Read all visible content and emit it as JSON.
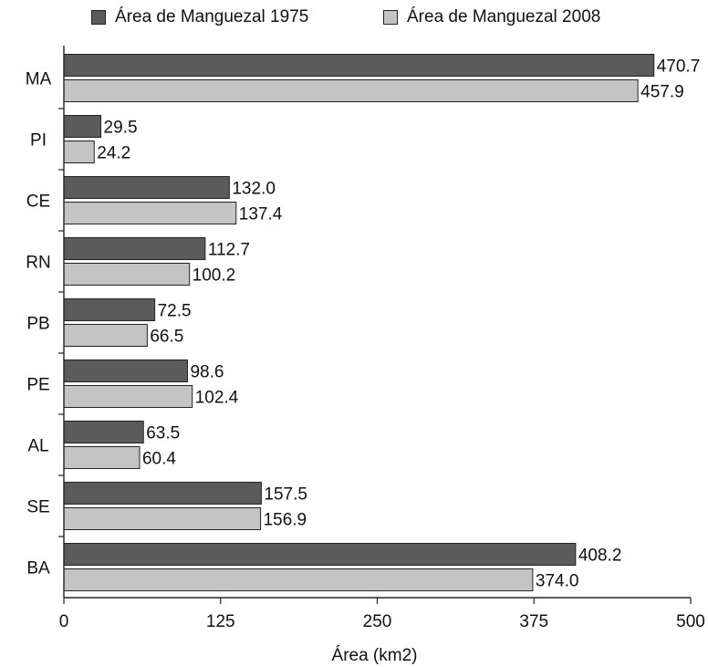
{
  "chart_data": {
    "type": "bar",
    "orientation": "horizontal",
    "categories": [
      "MA",
      "PI",
      "CE",
      "RN",
      "PB",
      "PE",
      "AL",
      "SE",
      "BA"
    ],
    "series": [
      {
        "name": "Área de Manguezal 1975",
        "color": "#5b5b5b",
        "values": [
          470.7,
          29.5,
          132.0,
          112.7,
          72.5,
          98.6,
          63.5,
          157.5,
          408.2
        ],
        "labels": [
          "470.7",
          "29.5",
          "132.0",
          "112.7",
          "72.5",
          "98.6",
          "63.5",
          "157.5",
          "408.2"
        ]
      },
      {
        "name": "Área de Manguezal 2008",
        "color": "#c4c4c4",
        "values": [
          457.9,
          24.2,
          137.4,
          100.2,
          66.5,
          102.4,
          60.4,
          156.9,
          374.0
        ],
        "labels": [
          "457.9",
          "24.2",
          "137.4",
          "100.2",
          "66.5",
          "102.4",
          "60.4",
          "156.9",
          "374.0"
        ]
      }
    ],
    "xlabel": "Área (km2)",
    "ylabel": "",
    "xlim": [
      0,
      500
    ],
    "xticks": [
      "0",
      "125",
      "250",
      "375",
      "500"
    ],
    "grid": false,
    "legend": "top"
  }
}
